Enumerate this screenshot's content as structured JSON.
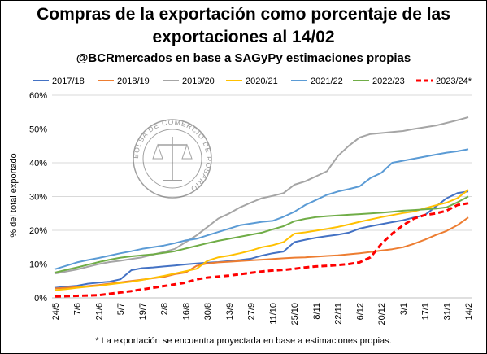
{
  "header": {
    "title_line1": "Compras de la exportación como porcentaje de las",
    "title_line2": "exportaciones al 14/02",
    "subtitle": "@BCRmercados en base a SAGyPy estimaciones propias"
  },
  "footnote": "* La exportación se encuentra proyectada en base a estimaciones propias.",
  "watermark": "BOLSA DE COMERCIO DE ROSARIO",
  "chart_data": {
    "type": "line",
    "title": "Compras de la exportación como porcentaje de las exportaciones al 14/02",
    "ylabel": "% del total exportado",
    "xlabel": "",
    "ylim": [
      0,
      60
    ],
    "yticks": [
      "0%",
      "10%",
      "20%",
      "30%",
      "40%",
      "50%",
      "60%"
    ],
    "grid": true,
    "legend_position": "top",
    "x": [
      "24/5",
      "31/5",
      "7/6",
      "14/6",
      "21/6",
      "28/6",
      "5/7",
      "12/7",
      "19/7",
      "26/7",
      "2/8",
      "9/8",
      "16/8",
      "23/8",
      "30/8",
      "6/9",
      "13/9",
      "20/9",
      "27/9",
      "4/10",
      "11/10",
      "18/10",
      "25/10",
      "1/11",
      "8/11",
      "15/11",
      "22/11",
      "29/11",
      "6/12",
      "13/12",
      "20/12",
      "27/12",
      "3/1",
      "10/1",
      "17/1",
      "24/1",
      "31/1",
      "7/2",
      "14/2"
    ],
    "xticks": [
      "24/5",
      "7/6",
      "21/6",
      "5/7",
      "19/7",
      "2/8",
      "16/8",
      "30/8",
      "13/9",
      "27/9",
      "11/10",
      "25/10",
      "8/11",
      "22/11",
      "6/12",
      "20/12",
      "3/1",
      "17/1",
      "31/1",
      "14/2"
    ],
    "series": [
      {
        "name": "2017/18",
        "color": "#4472C4",
        "dashed": false,
        "values": [
          3,
          3.3,
          3.6,
          4.2,
          4.5,
          4.8,
          5.5,
          8.2,
          8.8,
          9.0,
          9.3,
          9.6,
          9.9,
          10.2,
          10.4,
          10.6,
          10.9,
          11.2,
          11.6,
          12.5,
          13.2,
          13.7,
          16.5,
          17.2,
          17.8,
          18.3,
          18.7,
          19.3,
          20.5,
          21.2,
          21.8,
          22.4,
          23.0,
          23.8,
          24.5,
          27.0,
          29.5,
          31.0,
          31.5
        ]
      },
      {
        "name": "2018/19",
        "color": "#ED7D31",
        "dashed": false,
        "values": [
          2.8,
          3.0,
          3.2,
          3.5,
          3.8,
          4.2,
          4.6,
          5.0,
          5.4,
          5.8,
          6.2,
          7.0,
          7.5,
          9.5,
          10.2,
          10.5,
          10.7,
          10.9,
          11.1,
          11.3,
          11.5,
          11.7,
          11.9,
          12.0,
          12.2,
          12.4,
          12.6,
          12.9,
          13.2,
          13.6,
          14.0,
          14.4,
          15.0,
          16.0,
          17.2,
          18.6,
          19.8,
          21.5,
          23.8
        ]
      },
      {
        "name": "2019/20",
        "color": "#A5A5A5",
        "dashed": false,
        "values": [
          7.2,
          7.8,
          8.4,
          9.2,
          10.0,
          10.6,
          11.0,
          11.5,
          12.0,
          12.8,
          13.6,
          14.5,
          16.5,
          18.5,
          21.0,
          23.5,
          25.0,
          26.8,
          28.2,
          29.5,
          30.2,
          31.0,
          33.5,
          34.5,
          36.0,
          37.5,
          42.0,
          45.0,
          47.5,
          48.5,
          48.8,
          49.1,
          49.4,
          50.0,
          50.5,
          51.0,
          51.8,
          52.6,
          53.5
        ]
      },
      {
        "name": "2020/21",
        "color": "#FFC000",
        "dashed": false,
        "values": [
          2.3,
          2.6,
          3.0,
          3.3,
          3.6,
          4.0,
          4.4,
          4.8,
          5.3,
          5.9,
          6.5,
          7.2,
          7.9,
          8.6,
          11.0,
          12.0,
          12.5,
          13.2,
          14.0,
          15.0,
          15.6,
          16.5,
          19.0,
          19.4,
          19.9,
          20.4,
          21.0,
          21.7,
          22.5,
          23.2,
          23.9,
          24.5,
          25.1,
          25.6,
          26.5,
          27.4,
          28.2,
          29.5,
          32.0
        ]
      },
      {
        "name": "2021/22",
        "color": "#5B9BD5",
        "dashed": false,
        "values": [
          8.5,
          9.5,
          10.5,
          11.2,
          11.8,
          12.5,
          13.2,
          13.8,
          14.5,
          15.0,
          15.5,
          16.2,
          17.0,
          17.5,
          18.5,
          19.5,
          20.5,
          21.5,
          22.0,
          22.5,
          22.8,
          24.0,
          25.5,
          27.5,
          29.0,
          30.5,
          31.5,
          32.2,
          33.0,
          35.5,
          37.0,
          40.0,
          40.6,
          41.2,
          41.8,
          42.4,
          43.0,
          43.4,
          44.0
        ]
      },
      {
        "name": "2022/23",
        "color": "#70AD47",
        "dashed": false,
        "values": [
          7.5,
          8.3,
          9.0,
          9.8,
          10.6,
          11.3,
          11.9,
          12.3,
          12.6,
          12.9,
          13.3,
          13.8,
          14.6,
          15.4,
          16.2,
          16.9,
          17.5,
          18.1,
          18.7,
          19.3,
          20.3,
          21.2,
          22.7,
          23.4,
          23.9,
          24.2,
          24.4,
          24.6,
          24.8,
          25.0,
          25.2,
          25.5,
          25.8,
          26.0,
          26.2,
          26.4,
          26.8,
          28.3,
          30.0
        ]
      },
      {
        "name": "2023/24*",
        "color": "#FF0000",
        "dashed": true,
        "values": [
          0.4,
          0.5,
          0.6,
          0.7,
          0.8,
          1.2,
          1.6,
          2.0,
          2.5,
          3.0,
          3.5,
          4.0,
          4.5,
          5.5,
          6.0,
          6.3,
          6.6,
          7.0,
          7.4,
          7.8,
          8.1,
          8.3,
          8.6,
          9.0,
          9.3,
          9.5,
          9.7,
          10.0,
          10.5,
          12.0,
          16.0,
          19.0,
          21.5,
          23.5,
          24.5,
          25.0,
          25.8,
          27.5,
          28.0
        ]
      }
    ]
  }
}
